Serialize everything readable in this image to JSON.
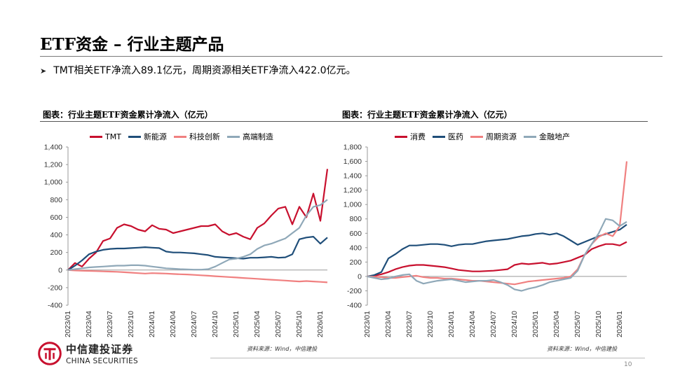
{
  "slide": {
    "title": "ETF资金 – 行业主题产品",
    "bullet": "TMT相关ETF净流入89.1亿元，周期资源相关ETF净流入422.0亿元。",
    "page_number": "10"
  },
  "logo": {
    "cn": "中信建投证券",
    "en": "CHINA SECURITIES"
  },
  "chart_data": [
    {
      "type": "line",
      "title": "图表：行业主题ETF资金累计净流入（亿元）",
      "source": "资料来源：Wind，中信建投",
      "ylim": [
        -400,
        1400
      ],
      "yticks": [
        -400,
        -200,
        0,
        200,
        400,
        600,
        800,
        1000,
        1200,
        1400
      ],
      "ytick_labels": [
        "-400",
        "-200",
        "0",
        "200",
        "400",
        "600",
        "800",
        "1,000",
        "1,200",
        "1,400"
      ],
      "x_start": "2023-01",
      "x_end": "2026-02",
      "xticks": [
        "2023/01",
        "2023/04",
        "2023/07",
        "2023/10",
        "2024/01",
        "2024/04",
        "2024/07",
        "2024/10",
        "2025/01",
        "2025/04",
        "2025/07",
        "2025/10",
        "2026/01"
      ],
      "legend_position": "top",
      "grid": false,
      "series": [
        {
          "name": "TMT",
          "color": "#c8102e",
          "x": [
            "2023-01",
            "2023-02",
            "2023-03",
            "2023-04",
            "2023-05",
            "2023-06",
            "2023-07",
            "2023-08",
            "2023-09",
            "2023-10",
            "2023-11",
            "2023-12",
            "2024-01",
            "2024-02",
            "2024-03",
            "2024-04",
            "2024-05",
            "2024-06",
            "2024-07",
            "2024-08",
            "2024-09",
            "2024-10",
            "2024-11",
            "2024-12",
            "2025-01",
            "2025-02",
            "2025-03",
            "2025-04",
            "2025-05",
            "2025-06",
            "2025-07",
            "2025-08",
            "2025-09",
            "2025-10",
            "2025-11",
            "2025-12",
            "2026-01",
            "2026-02"
          ],
          "y": [
            0,
            80,
            40,
            130,
            200,
            330,
            360,
            480,
            520,
            500,
            460,
            440,
            510,
            470,
            460,
            420,
            440,
            460,
            480,
            500,
            500,
            520,
            440,
            400,
            420,
            380,
            350,
            480,
            530,
            620,
            700,
            720,
            520,
            720,
            600,
            870,
            560,
            1150
          ]
        },
        {
          "name": "新能源",
          "color": "#1f4e79",
          "x": [
            "2023-01",
            "2023-02",
            "2023-03",
            "2023-04",
            "2023-05",
            "2023-06",
            "2023-07",
            "2023-08",
            "2023-09",
            "2023-10",
            "2023-11",
            "2023-12",
            "2024-01",
            "2024-02",
            "2024-03",
            "2024-04",
            "2024-05",
            "2024-06",
            "2024-07",
            "2024-08",
            "2024-09",
            "2024-10",
            "2024-11",
            "2024-12",
            "2025-01",
            "2025-02",
            "2025-03",
            "2025-04",
            "2025-05",
            "2025-06",
            "2025-07",
            "2025-08",
            "2025-09",
            "2025-10",
            "2025-11",
            "2025-12",
            "2026-01",
            "2026-02"
          ],
          "y": [
            0,
            50,
            110,
            180,
            210,
            230,
            240,
            245,
            245,
            250,
            255,
            260,
            255,
            250,
            210,
            200,
            200,
            195,
            190,
            180,
            170,
            150,
            145,
            140,
            135,
            130,
            140,
            140,
            145,
            150,
            140,
            145,
            180,
            350,
            370,
            380,
            300,
            370
          ]
        },
        {
          "name": "科技创新",
          "color": "#f08080",
          "x": [
            "2023-01",
            "2023-02",
            "2023-03",
            "2023-04",
            "2023-05",
            "2023-06",
            "2023-07",
            "2023-08",
            "2023-09",
            "2023-10",
            "2023-11",
            "2023-12",
            "2024-01",
            "2024-02",
            "2024-03",
            "2024-04",
            "2024-05",
            "2024-06",
            "2024-07",
            "2024-08",
            "2024-09",
            "2024-10",
            "2024-11",
            "2024-12",
            "2025-01",
            "2025-02",
            "2025-03",
            "2025-04",
            "2025-05",
            "2025-06",
            "2025-07",
            "2025-08",
            "2025-09",
            "2025-10",
            "2025-11",
            "2025-12",
            "2026-01",
            "2026-02"
          ],
          "y": [
            0,
            -5,
            -8,
            -10,
            -12,
            -15,
            -18,
            -20,
            -25,
            -30,
            -35,
            -40,
            -35,
            -38,
            -40,
            -45,
            -48,
            -50,
            -55,
            -60,
            -65,
            -70,
            -75,
            -80,
            -85,
            -90,
            -95,
            -100,
            -105,
            -110,
            -115,
            -120,
            -125,
            -130,
            -125,
            -130,
            -135,
            -140
          ]
        },
        {
          "name": "高端制造",
          "color": "#8fa8b8",
          "x": [
            "2023-01",
            "2023-02",
            "2023-03",
            "2023-04",
            "2023-05",
            "2023-06",
            "2023-07",
            "2023-08",
            "2023-09",
            "2023-10",
            "2023-11",
            "2023-12",
            "2024-01",
            "2024-02",
            "2024-03",
            "2024-04",
            "2024-05",
            "2024-06",
            "2024-07",
            "2024-08",
            "2024-09",
            "2024-10",
            "2024-11",
            "2024-12",
            "2025-01",
            "2025-02",
            "2025-03",
            "2025-04",
            "2025-05",
            "2025-06",
            "2025-07",
            "2025-08",
            "2025-09",
            "2025-10",
            "2025-11",
            "2025-12",
            "2026-01",
            "2026-02"
          ],
          "y": [
            0,
            10,
            20,
            30,
            35,
            40,
            45,
            50,
            50,
            55,
            55,
            50,
            40,
            30,
            20,
            15,
            10,
            8,
            5,
            5,
            10,
            40,
            80,
            120,
            130,
            150,
            180,
            240,
            280,
            300,
            330,
            360,
            420,
            480,
            620,
            720,
            740,
            800
          ]
        }
      ]
    },
    {
      "type": "line",
      "title": "图表：行业主题ETF资金累计净流入（亿元）",
      "source": "资料来源：Wind，中信建投",
      "ylim": [
        -400,
        1800
      ],
      "yticks": [
        -400,
        -200,
        0,
        200,
        400,
        600,
        800,
        1000,
        1200,
        1400,
        1600,
        1800
      ],
      "ytick_labels": [
        "-400",
        "-200",
        "0",
        "200",
        "400",
        "600",
        "800",
        "1,000",
        "1,200",
        "1,400",
        "1,600",
        "1,800"
      ],
      "x_start": "2023-01",
      "x_end": "2026-02",
      "xticks": [
        "2023/01",
        "2023/04",
        "2023/07",
        "2023/10",
        "2024/01",
        "2024/04",
        "2024/07",
        "2024/10",
        "2025/01",
        "2025/04",
        "2025/07",
        "2025/10",
        "2026/01"
      ],
      "legend_position": "top",
      "grid": false,
      "series": [
        {
          "name": "消费",
          "color": "#c8102e",
          "x": [
            "2023-01",
            "2023-02",
            "2023-03",
            "2023-04",
            "2023-05",
            "2023-06",
            "2023-07",
            "2023-08",
            "2023-09",
            "2023-10",
            "2023-11",
            "2023-12",
            "2024-01",
            "2024-02",
            "2024-03",
            "2024-04",
            "2024-05",
            "2024-06",
            "2024-07",
            "2024-08",
            "2024-09",
            "2024-10",
            "2024-11",
            "2024-12",
            "2025-01",
            "2025-02",
            "2025-03",
            "2025-04",
            "2025-05",
            "2025-06",
            "2025-07",
            "2025-08",
            "2025-09",
            "2025-10",
            "2025-11",
            "2025-12",
            "2026-01",
            "2026-02"
          ],
          "y": [
            0,
            10,
            30,
            60,
            100,
            130,
            150,
            160,
            160,
            150,
            140,
            130,
            110,
            90,
            80,
            70,
            70,
            75,
            80,
            90,
            100,
            160,
            180,
            170,
            180,
            190,
            170,
            180,
            200,
            220,
            260,
            300,
            380,
            420,
            450,
            450,
            430,
            480
          ]
        },
        {
          "name": "医药",
          "color": "#1f4e79",
          "x": [
            "2023-01",
            "2023-02",
            "2023-03",
            "2023-04",
            "2023-05",
            "2023-06",
            "2023-07",
            "2023-08",
            "2023-09",
            "2023-10",
            "2023-11",
            "2023-12",
            "2024-01",
            "2024-02",
            "2024-03",
            "2024-04",
            "2024-05",
            "2024-06",
            "2024-07",
            "2024-08",
            "2024-09",
            "2024-10",
            "2024-11",
            "2024-12",
            "2025-01",
            "2025-02",
            "2025-03",
            "2025-04",
            "2025-05",
            "2025-06",
            "2025-07",
            "2025-08",
            "2025-09",
            "2025-10",
            "2025-11",
            "2025-12",
            "2026-01",
            "2026-02"
          ],
          "y": [
            0,
            20,
            60,
            250,
            310,
            380,
            430,
            430,
            440,
            450,
            450,
            440,
            420,
            440,
            450,
            450,
            470,
            490,
            500,
            510,
            520,
            540,
            560,
            570,
            590,
            600,
            580,
            600,
            560,
            500,
            440,
            480,
            520,
            560,
            590,
            620,
            650,
            720
          ]
        },
        {
          "name": "周期资源",
          "color": "#f08080",
          "x": [
            "2023-01",
            "2023-02",
            "2023-03",
            "2023-04",
            "2023-05",
            "2023-06",
            "2023-07",
            "2023-08",
            "2023-09",
            "2023-10",
            "2023-11",
            "2023-12",
            "2024-01",
            "2024-02",
            "2024-03",
            "2024-04",
            "2024-05",
            "2024-06",
            "2024-07",
            "2024-08",
            "2024-09",
            "2024-10",
            "2024-11",
            "2024-12",
            "2025-01",
            "2025-02",
            "2025-03",
            "2025-04",
            "2025-05",
            "2025-06",
            "2025-07",
            "2025-08",
            "2025-09",
            "2025-10",
            "2025-11",
            "2025-12",
            "2026-01",
            "2026-02"
          ],
          "y": [
            0,
            -5,
            -10,
            -20,
            -20,
            -10,
            0,
            10,
            -10,
            -20,
            -20,
            -30,
            -30,
            -40,
            -50,
            -60,
            -60,
            -70,
            -80,
            -90,
            -100,
            -110,
            -90,
            -70,
            -60,
            -50,
            -40,
            -30,
            -20,
            0,
            100,
            300,
            450,
            550,
            600,
            560,
            700,
            1600
          ]
        },
        {
          "name": "金融地产",
          "color": "#8fa8b8",
          "x": [
            "2023-01",
            "2023-02",
            "2023-03",
            "2023-04",
            "2023-05",
            "2023-06",
            "2023-07",
            "2023-08",
            "2023-09",
            "2023-10",
            "2023-11",
            "2023-12",
            "2024-01",
            "2024-02",
            "2024-03",
            "2024-04",
            "2024-05",
            "2024-06",
            "2024-07",
            "2024-08",
            "2024-09",
            "2024-10",
            "2024-11",
            "2024-12",
            "2025-01",
            "2025-02",
            "2025-03",
            "2025-04",
            "2025-05",
            "2025-06",
            "2025-07",
            "2025-08",
            "2025-09",
            "2025-10",
            "2025-11",
            "2025-12",
            "2026-01",
            "2026-02"
          ],
          "y": [
            0,
            -20,
            -40,
            -30,
            0,
            20,
            30,
            -60,
            -100,
            -80,
            -60,
            -50,
            -40,
            -60,
            -80,
            -70,
            -60,
            -60,
            -50,
            -80,
            -120,
            -180,
            -200,
            -170,
            -150,
            -120,
            -80,
            -60,
            -40,
            -20,
            80,
            300,
            450,
            600,
            800,
            780,
            700,
            760
          ]
        }
      ]
    }
  ]
}
